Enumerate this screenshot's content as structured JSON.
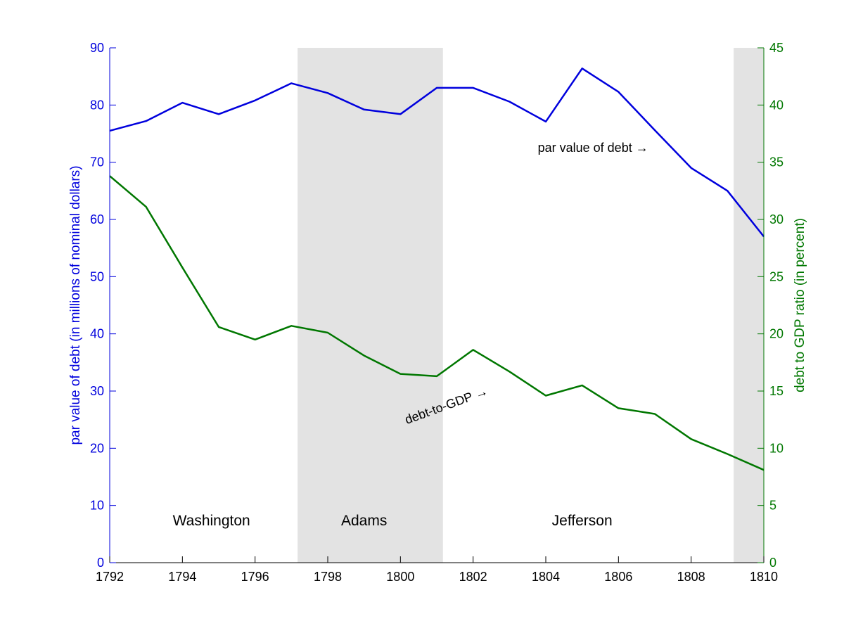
{
  "chart_data": {
    "type": "line",
    "title": "",
    "xlabel": "",
    "x": [
      1792,
      1793,
      1794,
      1795,
      1796,
      1797,
      1798,
      1799,
      1800,
      1801,
      1802,
      1803,
      1804,
      1805,
      1806,
      1807,
      1808,
      1809,
      1810
    ],
    "xlim": [
      1792,
      1810
    ],
    "xticks": [
      1792,
      1794,
      1796,
      1798,
      1800,
      1802,
      1804,
      1806,
      1808,
      1810
    ],
    "grid": false,
    "y_left": {
      "label": "par value of debt (in millions of nominal dollars)",
      "lim": [
        0,
        90
      ],
      "ticks": [
        0,
        10,
        20,
        30,
        40,
        50,
        60,
        70,
        80,
        90
      ],
      "color": "#0000dd"
    },
    "y_right": {
      "label": "debt to GDP ratio (in percent)",
      "lim": [
        0,
        45
      ],
      "ticks": [
        0,
        5,
        10,
        15,
        20,
        25,
        30,
        35,
        40,
        45
      ],
      "color": "#007700"
    },
    "series": [
      {
        "axis": "left",
        "color": "#0000dd",
        "values": [
          75.5,
          77.2,
          80.4,
          78.4,
          80.8,
          83.8,
          82.1,
          79.2,
          78.4,
          83.0,
          83.0,
          80.6,
          77.1,
          86.4,
          82.3,
          75.6,
          69.0,
          65.0,
          57.0
        ]
      },
      {
        "axis": "right",
        "color": "#007700",
        "values": [
          33.8,
          31.1,
          25.8,
          20.6,
          19.5,
          20.7,
          20.1,
          18.1,
          16.5,
          16.3,
          18.6,
          16.7,
          14.6,
          15.5,
          13.5,
          13.0,
          10.8,
          9.5,
          8.1
        ]
      }
    ],
    "shaded_periods": [
      {
        "start": 1797.17,
        "end": 1801.17,
        "color": "#e3e3e3"
      },
      {
        "start": 1809.17,
        "end": 1810,
        "color": "#e3e3e3"
      }
    ],
    "presidents": [
      {
        "label": "Washington",
        "x": 1794.8
      },
      {
        "label": "Adams",
        "x": 1799.0
      },
      {
        "label": "Jefferson",
        "x": 1805.0
      }
    ],
    "president_label_y": 6.5,
    "annotations": [
      {
        "text": "par value of debt →",
        "x": 1805.3,
        "y_left": 71.8
      },
      {
        "text": "debt-to-GDP →",
        "x": 1801.3,
        "y_left": 26.8,
        "rotation": -20
      }
    ]
  }
}
